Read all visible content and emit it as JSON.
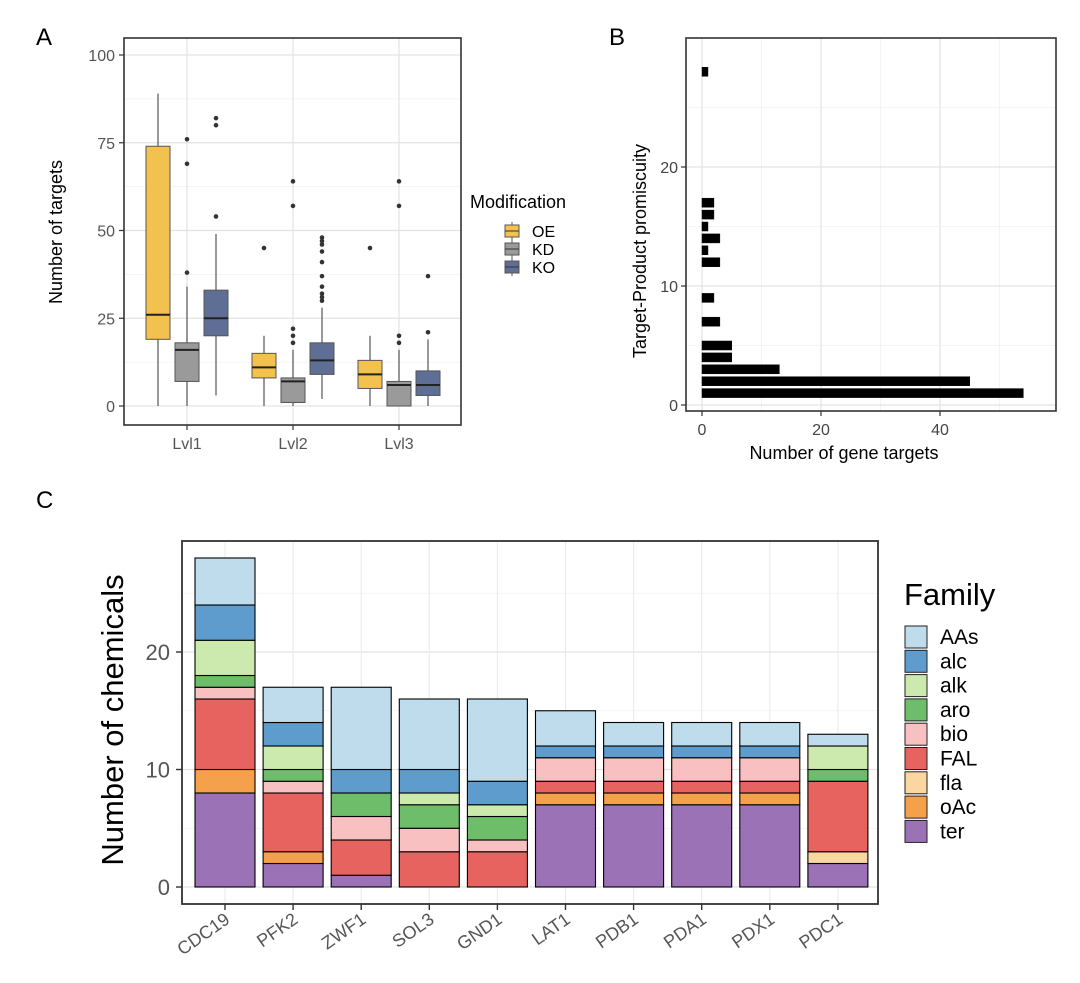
{
  "chart_data": [
    {
      "panel": "A",
      "type": "box",
      "ylabel": "Number of targets",
      "xlabel": "",
      "ylim": [
        0,
        100
      ],
      "yticks": [
        0,
        25,
        50,
        75,
        100
      ],
      "categories": [
        "Lvl1",
        "Lvl2",
        "Lvl3"
      ],
      "legend": {
        "title": "Modification",
        "position": "right",
        "entries": [
          "OE",
          "KD",
          "KO"
        ]
      },
      "series": [
        {
          "name": "OE",
          "color": "#f2c14e",
          "boxes": [
            {
              "q1": 19,
              "median": 26,
              "q3": 74,
              "lo": 0,
              "hi": 89,
              "outliers": []
            },
            {
              "q1": 8,
              "median": 11,
              "q3": 15,
              "lo": 0,
              "hi": 20,
              "outliers": [
                45
              ]
            },
            {
              "q1": 5,
              "median": 9,
              "q3": 13,
              "lo": 0,
              "hi": 20,
              "outliers": [
                45
              ]
            }
          ]
        },
        {
          "name": "KD",
          "color": "#9a9a9a",
          "boxes": [
            {
              "q1": 7,
              "median": 16,
              "q3": 18,
              "lo": 0,
              "hi": 34,
              "outliers": [
                38,
                69,
                76
              ]
            },
            {
              "q1": 1,
              "median": 7,
              "q3": 8,
              "lo": 0,
              "hi": 16,
              "outliers": [
                18,
                20,
                22,
                57,
                64
              ]
            },
            {
              "q1": 0,
              "median": 6,
              "q3": 7,
              "lo": 0,
              "hi": 16,
              "outliers": [
                18,
                20,
                57,
                64
              ]
            }
          ]
        },
        {
          "name": "KO",
          "color": "#5e6e94",
          "boxes": [
            {
              "q1": 20,
              "median": 25,
              "q3": 33,
              "lo": 3,
              "hi": 49,
              "outliers": [
                54,
                80,
                82
              ]
            },
            {
              "q1": 9,
              "median": 13,
              "q3": 18,
              "lo": 2,
              "hi": 28,
              "outliers": [
                30,
                31,
                32,
                34,
                37,
                41,
                44,
                46,
                47,
                48
              ]
            },
            {
              "q1": 3,
              "median": 6,
              "q3": 10,
              "lo": 0,
              "hi": 19,
              "outliers": [
                21,
                37
              ]
            }
          ]
        }
      ]
    },
    {
      "panel": "B",
      "type": "bar",
      "orientation": "horizontal",
      "xlabel": "Number of gene targets",
      "ylabel": "Target-Product promiscuity",
      "xlim": [
        -2,
        56
      ],
      "ylim": [
        -0.5,
        29.5
      ],
      "xticks": [
        0,
        20,
        40
      ],
      "yticks": [
        0,
        10,
        20
      ],
      "promiscuity": [
        1,
        2,
        3,
        4,
        5,
        7,
        9,
        12,
        13,
        14,
        15,
        16,
        17,
        28
      ],
      "gene_targets": [
        54,
        45,
        13,
        5,
        5,
        3,
        2,
        3,
        1,
        3,
        1,
        2,
        2,
        1
      ]
    },
    {
      "panel": "C",
      "type": "stacked-bar",
      "ylabel": "Number of chemicals",
      "xlabel": "",
      "ylim": [
        0,
        29.6
      ],
      "yticks": [
        0,
        10,
        20
      ],
      "categories": [
        "CDC19",
        "PFK2",
        "ZWF1",
        "SOL3",
        "GND1",
        "LAT1",
        "PDB1",
        "PDA1",
        "PDX1",
        "PDC1"
      ],
      "legend": {
        "title": "Family",
        "position": "right"
      },
      "series": [
        {
          "name": "ter",
          "color": "#9c72b7",
          "values": [
            8,
            2,
            1,
            0,
            0,
            7,
            7,
            7,
            7,
            2
          ]
        },
        {
          "name": "oAc",
          "color": "#f5a04a",
          "values": [
            2,
            1,
            0,
            0,
            0,
            1,
            1,
            1,
            1,
            0
          ]
        },
        {
          "name": "fla",
          "color": "#fad7a0",
          "values": [
            0,
            0,
            0,
            0,
            0,
            0,
            0,
            0,
            0,
            1
          ]
        },
        {
          "name": "FAL",
          "color": "#e7635f",
          "values": [
            6,
            5,
            3,
            3,
            3,
            1,
            1,
            1,
            1,
            6
          ]
        },
        {
          "name": "bio",
          "color": "#f9c0c1",
          "values": [
            1,
            1,
            2,
            2,
            1,
            2,
            2,
            2,
            2,
            0
          ]
        },
        {
          "name": "aro",
          "color": "#6ebd6b",
          "values": [
            1,
            1,
            2,
            2,
            2,
            0,
            0,
            0,
            0,
            1
          ]
        },
        {
          "name": "alk",
          "color": "#cce9ae",
          "values": [
            3,
            2,
            0,
            1,
            1,
            0,
            0,
            0,
            0,
            2
          ]
        },
        {
          "name": "alc",
          "color": "#5d9ccd",
          "values": [
            3,
            2,
            2,
            2,
            2,
            1,
            1,
            1,
            1,
            0
          ]
        },
        {
          "name": "AAs",
          "color": "#bedcec",
          "values": [
            4,
            3,
            7,
            6,
            7,
            3,
            2,
            2,
            2,
            1
          ]
        }
      ]
    }
  ]
}
